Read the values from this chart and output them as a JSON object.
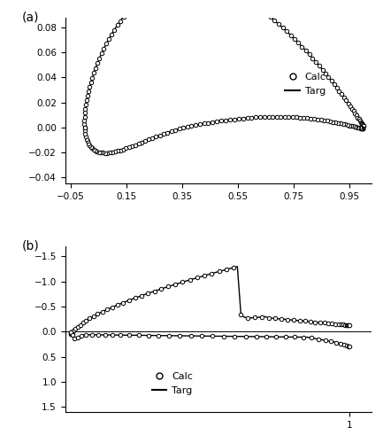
{
  "fig_width": 4.33,
  "fig_height": 5.0,
  "dpi": 100,
  "panel_a": {
    "label": "(a)",
    "xlim": [
      -0.07,
      1.03
    ],
    "ylim": [
      -0.045,
      0.088
    ],
    "xticks": [
      -0.05,
      0.15,
      0.35,
      0.55,
      0.75,
      0.95
    ],
    "yticks": [
      -0.04,
      -0.02,
      0.0,
      0.02,
      0.04,
      0.06,
      0.08
    ]
  },
  "panel_b": {
    "label": "(b)",
    "xlim": [
      -0.02,
      1.08
    ],
    "ylim": [
      1.6,
      -1.7
    ],
    "xticks": [
      1
    ],
    "yticks": [
      -1.5,
      -1.0,
      -0.5,
      0.0,
      0.5,
      1.0,
      1.5
    ]
  },
  "background_color": "white"
}
